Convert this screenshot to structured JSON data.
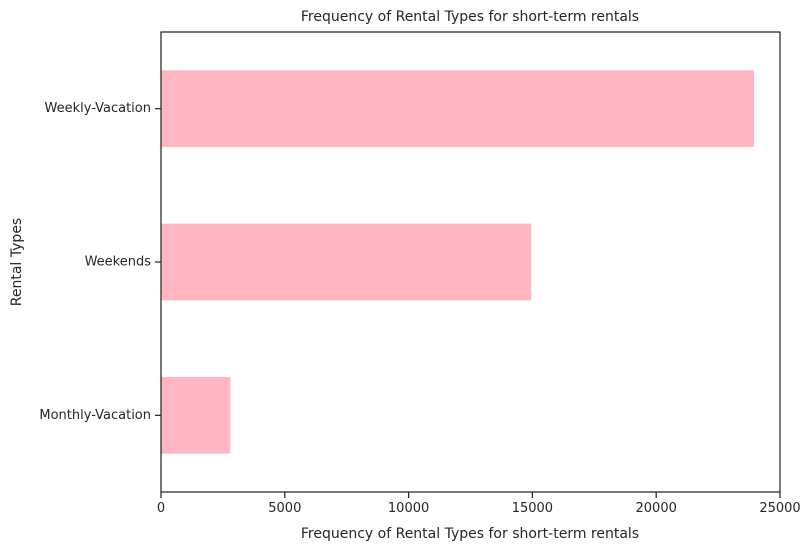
{
  "chart_data": {
    "type": "bar",
    "orientation": "horizontal",
    "title": "Frequency of Rental Types for short-term rentals",
    "xlabel": "Frequency of Rental Types for short-term rentals",
    "ylabel": "Rental Types",
    "categories": [
      "Monthly-Vacation",
      "Weekends",
      "Weekly-Vacation"
    ],
    "values": [
      2800,
      14950,
      23950
    ],
    "xlim": [
      0,
      25000
    ],
    "xticks": [
      0,
      5000,
      10000,
      15000,
      20000,
      25000
    ],
    "grid": false,
    "legend": "none",
    "bar_color": "#ffb6c1",
    "axis_color": "#262626"
  }
}
